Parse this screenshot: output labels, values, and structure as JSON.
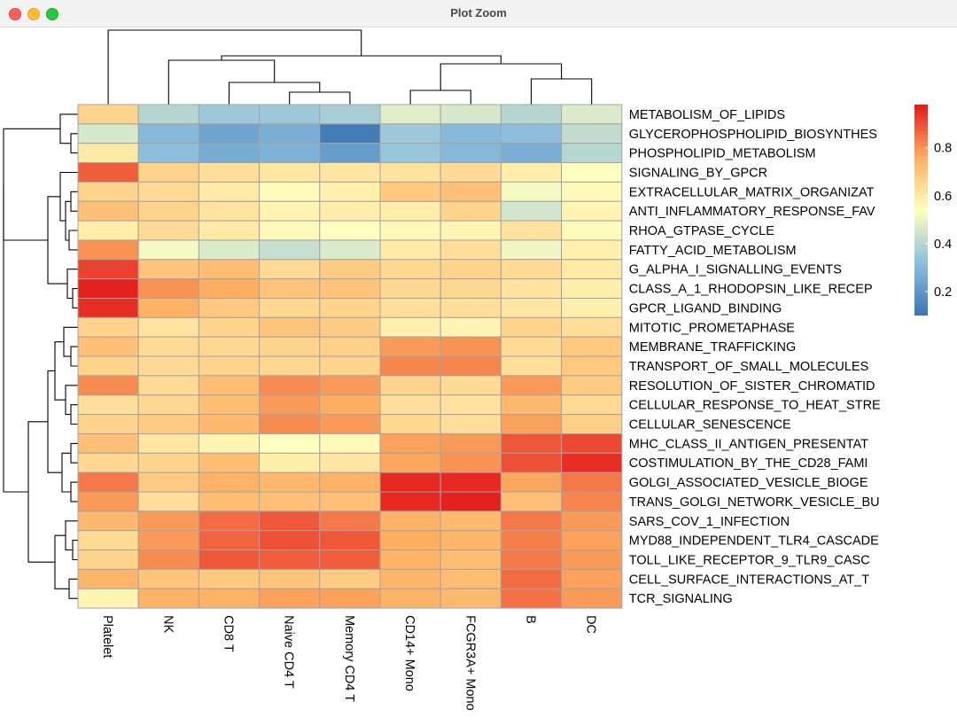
{
  "window": {
    "title": "Plot Zoom"
  },
  "colors": {
    "high": "#e41a1c",
    "low": "#2c6fb8",
    "cell_border": "#a3a3a3",
    "tree_line": "#000000"
  },
  "chart_data": {
    "type": "heatmap",
    "title": "",
    "xlabel": "",
    "ylabel": "",
    "columns": [
      "Platelet",
      "NK",
      "CD8 T",
      "Naive CD4 T",
      "Memory CD4 T",
      "CD14+ Mono",
      "FCGR3A+ Mono",
      "B",
      "DC"
    ],
    "rows": [
      "METABOLISM_OF_LIPIDS",
      "GLYCEROPHOSPHOLIPID_BIOSYNTHES",
      "PHOSPHOLIPID_METABOLISM",
      "SIGNALING_BY_GPCR",
      "EXTRACELLULAR_MATRIX_ORGANIZAT",
      "ANTI_INFLAMMATORY_RESPONSE_FAV",
      "RHOA_GTPASE_CYCLE",
      "FATTY_ACID_METABOLISM",
      "G_ALPHA_I_SIGNALLING_EVENTS",
      "CLASS_A_1_RHODOPSIN_LIKE_RECEP",
      "GPCR_LIGAND_BINDING",
      "MITOTIC_PROMETAPHASE",
      "MEMBRANE_TRAFFICKING",
      "TRANSPORT_OF_SMALL_MOLECULES",
      "RESOLUTION_OF_SISTER_CHROMATID",
      "CELLULAR_RESPONSE_TO_HEAT_STRE",
      "CELLULAR_SENESCENCE",
      "MHC_CLASS_II_ANTIGEN_PRESENTAT",
      "COSTIMULATION_BY_THE_CD28_FAMI",
      "GOLGI_ASSOCIATED_VESICLE_BIOGE",
      "TRANS_GOLGI_NETWORK_VESICLE_BU",
      "SARS_COV_1_INFECTION",
      "MYD88_INDEPENDENT_TLR4_CASCADE",
      "TOLL_LIKE_RECEPTOR_9_TLR9_CASC",
      "CELL_SURFACE_INTERACTIONS_AT_T",
      "TCR_SIGNALING"
    ],
    "values": [
      [
        0.66,
        0.4,
        0.35,
        0.35,
        0.37,
        0.48,
        0.46,
        0.4,
        0.47
      ],
      [
        0.46,
        0.3,
        0.24,
        0.27,
        0.12,
        0.35,
        0.3,
        0.32,
        0.42
      ],
      [
        0.6,
        0.32,
        0.26,
        0.28,
        0.22,
        0.34,
        0.3,
        0.27,
        0.4
      ],
      [
        0.88,
        0.66,
        0.63,
        0.61,
        0.61,
        0.62,
        0.64,
        0.59,
        0.54
      ],
      [
        0.66,
        0.64,
        0.6,
        0.55,
        0.58,
        0.69,
        0.71,
        0.52,
        0.56
      ],
      [
        0.71,
        0.66,
        0.62,
        0.57,
        0.59,
        0.59,
        0.66,
        0.45,
        0.57
      ],
      [
        0.59,
        0.64,
        0.6,
        0.56,
        0.54,
        0.56,
        0.57,
        0.62,
        0.55
      ],
      [
        0.8,
        0.52,
        0.47,
        0.43,
        0.47,
        0.6,
        0.63,
        0.51,
        0.58
      ],
      [
        0.92,
        0.7,
        0.72,
        0.64,
        0.68,
        0.65,
        0.66,
        0.64,
        0.6
      ],
      [
        0.97,
        0.8,
        0.76,
        0.7,
        0.7,
        0.65,
        0.65,
        0.62,
        0.59
      ],
      [
        0.95,
        0.75,
        0.69,
        0.65,
        0.66,
        0.63,
        0.63,
        0.61,
        0.58
      ],
      [
        0.66,
        0.62,
        0.66,
        0.7,
        0.68,
        0.58,
        0.57,
        0.66,
        0.63
      ],
      [
        0.71,
        0.64,
        0.65,
        0.66,
        0.67,
        0.79,
        0.8,
        0.64,
        0.69
      ],
      [
        0.66,
        0.64,
        0.66,
        0.65,
        0.66,
        0.82,
        0.82,
        0.63,
        0.69
      ],
      [
        0.81,
        0.64,
        0.72,
        0.81,
        0.79,
        0.66,
        0.64,
        0.79,
        0.68
      ],
      [
        0.63,
        0.65,
        0.72,
        0.79,
        0.76,
        0.63,
        0.62,
        0.73,
        0.64
      ],
      [
        0.66,
        0.68,
        0.73,
        0.81,
        0.79,
        0.65,
        0.63,
        0.78,
        0.67
      ],
      [
        0.71,
        0.61,
        0.57,
        0.54,
        0.56,
        0.78,
        0.79,
        0.89,
        0.91
      ],
      [
        0.65,
        0.66,
        0.72,
        0.59,
        0.61,
        0.77,
        0.8,
        0.9,
        0.95
      ],
      [
        0.84,
        0.68,
        0.75,
        0.73,
        0.75,
        0.96,
        0.96,
        0.77,
        0.84
      ],
      [
        0.79,
        0.63,
        0.72,
        0.71,
        0.71,
        0.96,
        0.97,
        0.71,
        0.82
      ],
      [
        0.73,
        0.79,
        0.86,
        0.89,
        0.84,
        0.75,
        0.73,
        0.84,
        0.79
      ],
      [
        0.64,
        0.79,
        0.87,
        0.9,
        0.89,
        0.76,
        0.74,
        0.83,
        0.78
      ],
      [
        0.66,
        0.81,
        0.89,
        0.88,
        0.88,
        0.75,
        0.72,
        0.84,
        0.79
      ],
      [
        0.74,
        0.7,
        0.69,
        0.7,
        0.68,
        0.74,
        0.72,
        0.86,
        0.78
      ],
      [
        0.57,
        0.75,
        0.75,
        0.78,
        0.78,
        0.75,
        0.73,
        0.85,
        0.79
      ]
    ],
    "colorbar": {
      "ticks": [
        0.2,
        0.4,
        0.6,
        0.8
      ],
      "range": [
        0.1,
        0.98
      ],
      "colors": [
        "#3a75b5",
        "#8dbfdd",
        "#ffffbf",
        "#fdae61",
        "#e41a1c"
      ]
    },
    "legend_placement": "right",
    "grid": false
  }
}
